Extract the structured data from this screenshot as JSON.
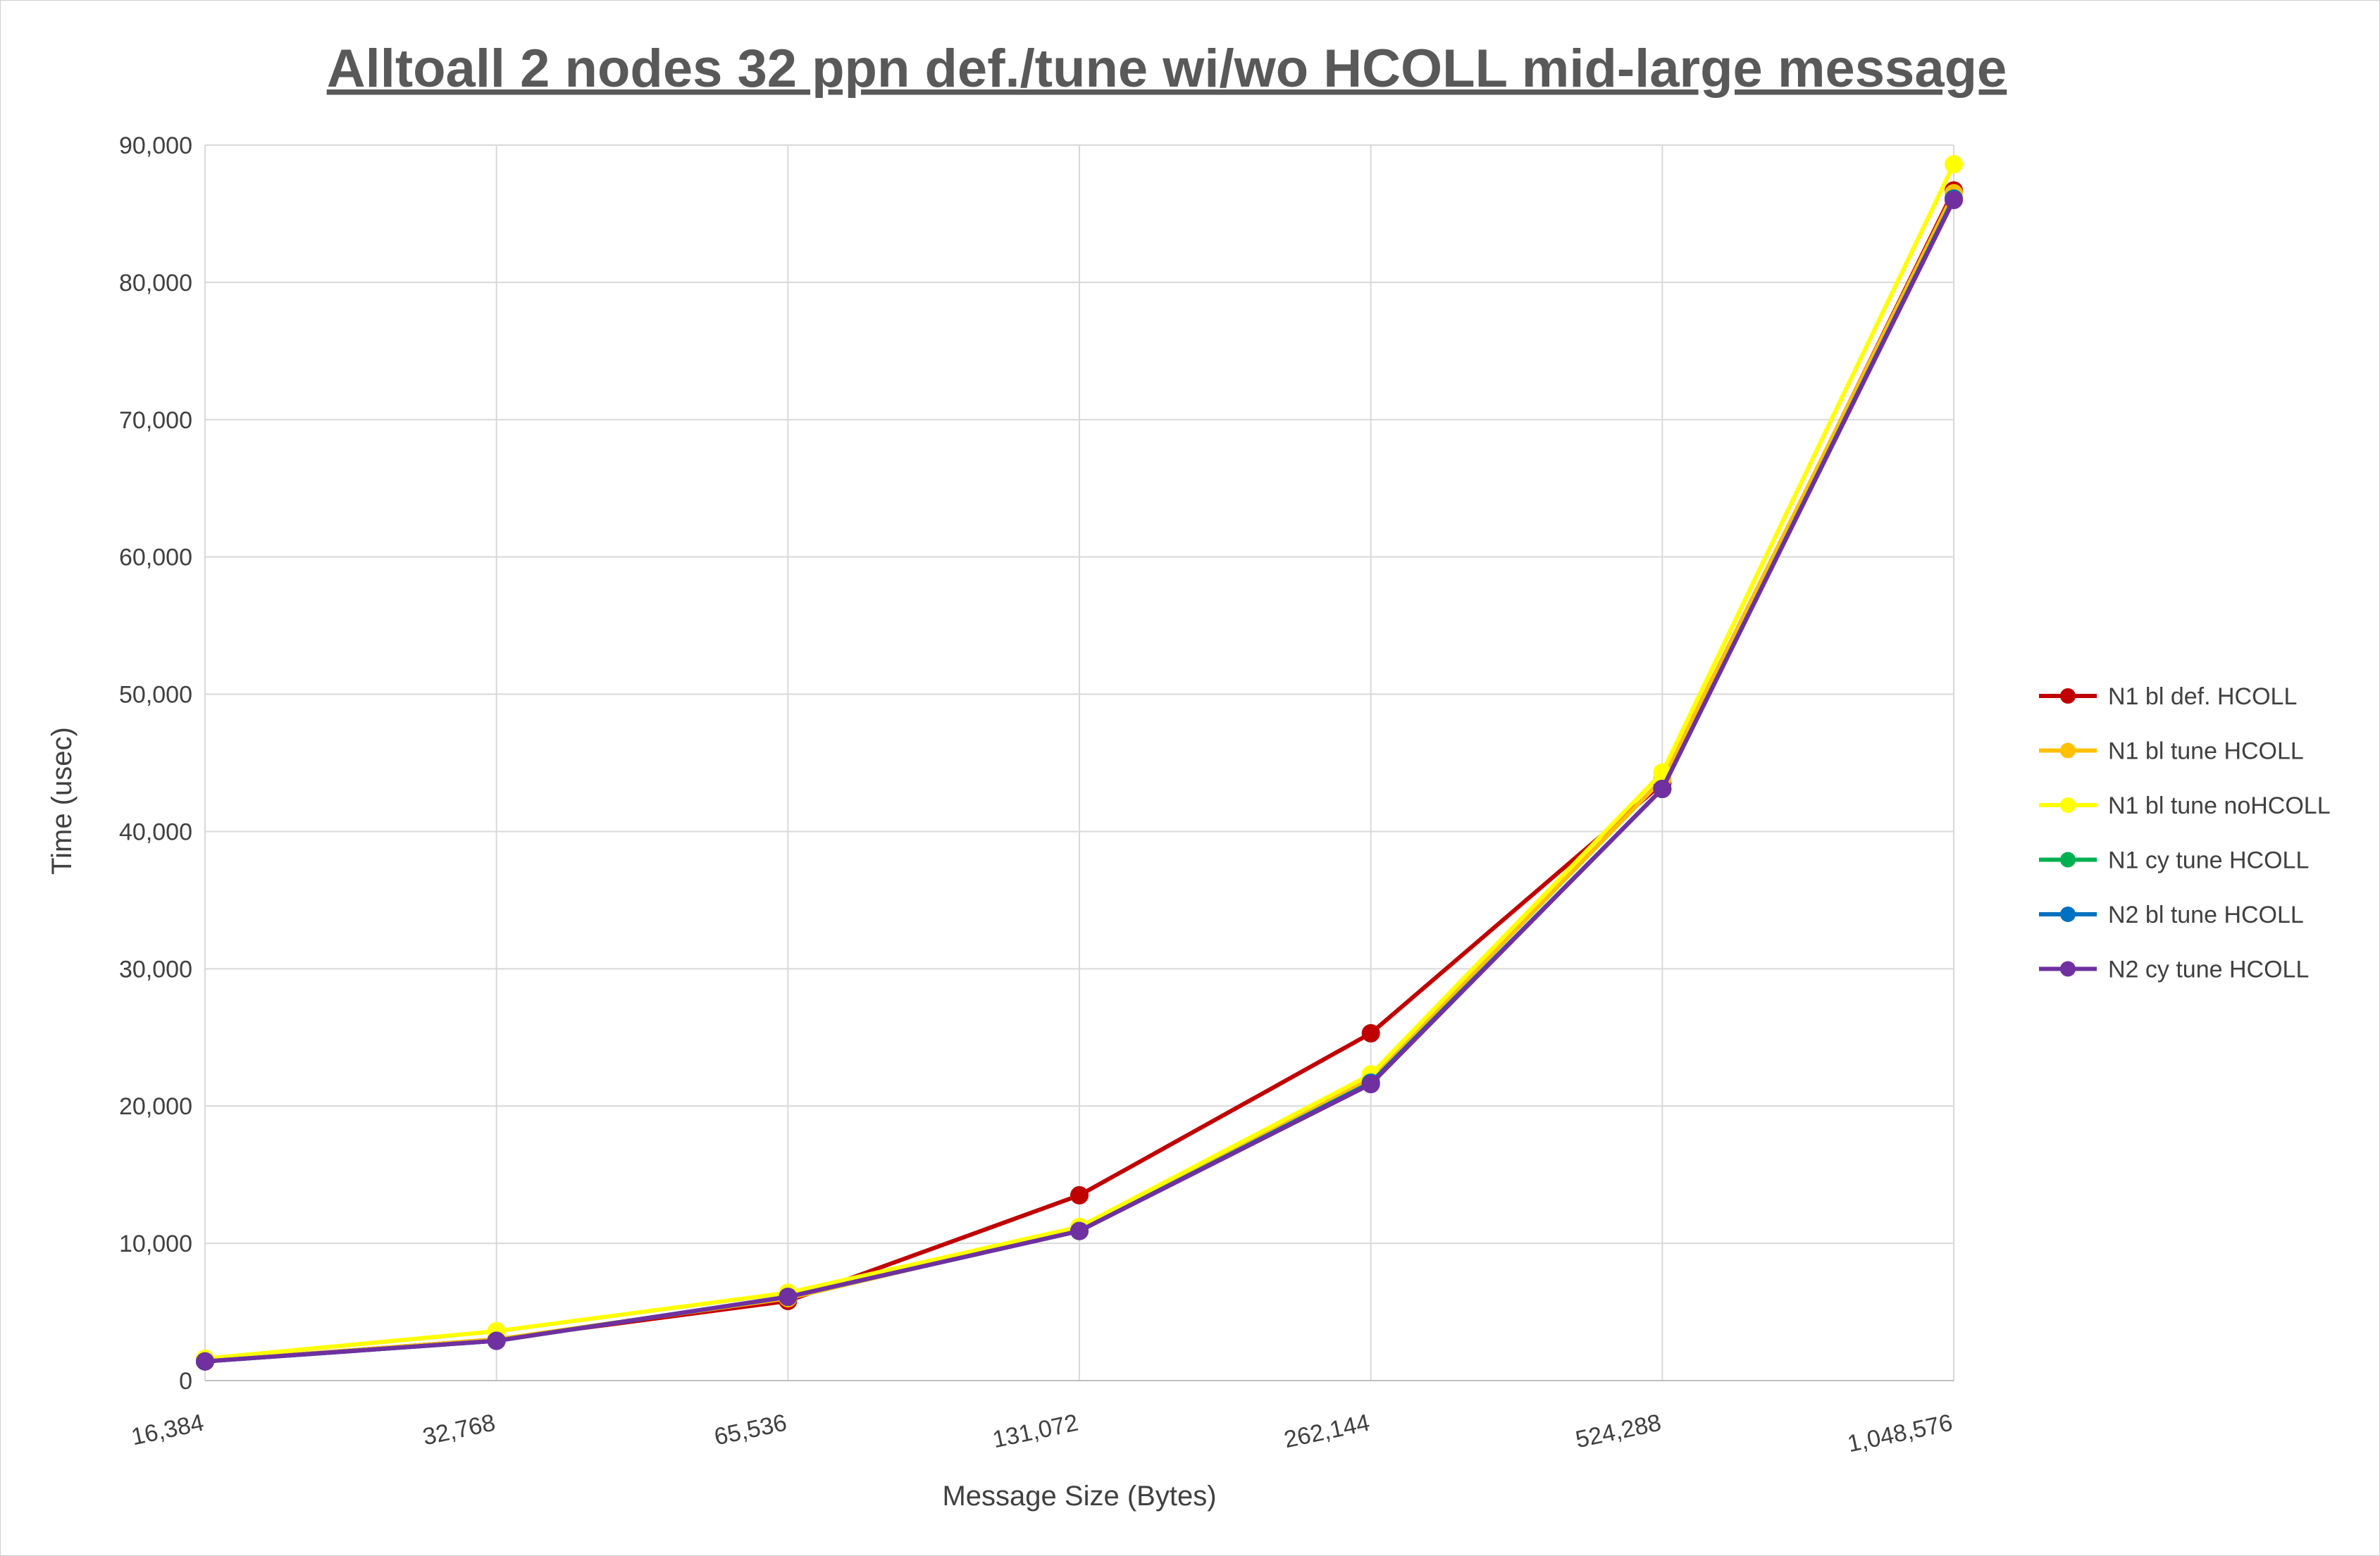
{
  "chart_data": {
    "type": "line",
    "title": "Alltoall 2 nodes 32 ppn def./tune wi/wo HCOLL mid-large message",
    "xlabel": "Message Size (Bytes)",
    "ylabel": "Time (usec)",
    "categories": [
      "16,384",
      "32,768",
      "65,536",
      "131,072",
      "262,144",
      "524,288",
      "1,048,576"
    ],
    "ylim": [
      0,
      90000
    ],
    "yticks": [
      0,
      10000,
      20000,
      30000,
      40000,
      50000,
      60000,
      70000,
      80000,
      90000
    ],
    "ytick_labels": [
      "0",
      "10,000",
      "20,000",
      "30,000",
      "40,000",
      "50,000",
      "60,000",
      "70,000",
      "80,000",
      "90,000"
    ],
    "grid": true,
    "legend_position": "right",
    "series": [
      {
        "name": "N1 bl def. HCOLL",
        "color": "#C00000",
        "values": [
          1400,
          3000,
          5800,
          13500,
          25300,
          43500,
          86700
        ]
      },
      {
        "name": "N1 bl tune HCOLL",
        "color": "#FFC000",
        "values": [
          1400,
          3000,
          6000,
          11000,
          22000,
          43800,
          86500
        ]
      },
      {
        "name": "N1 bl tune noHCOLL",
        "color": "#FFFF00",
        "values": [
          1600,
          3600,
          6400,
          11200,
          22300,
          44300,
          88600
        ]
      },
      {
        "name": "N1 cy tune HCOLL",
        "color": "#00B050",
        "values": [
          1400,
          2900,
          6100,
          10900,
          21700,
          43100,
          86100
        ]
      },
      {
        "name": "N2 bl tune HCOLL",
        "color": "#0070C0",
        "values": [
          1400,
          2900,
          6100,
          10900,
          21700,
          43100,
          86100
        ]
      },
      {
        "name": "N2 cy tune HCOLL",
        "color": "#7030A0",
        "values": [
          1400,
          2900,
          6100,
          10900,
          21600,
          43100,
          86000
        ]
      }
    ]
  }
}
